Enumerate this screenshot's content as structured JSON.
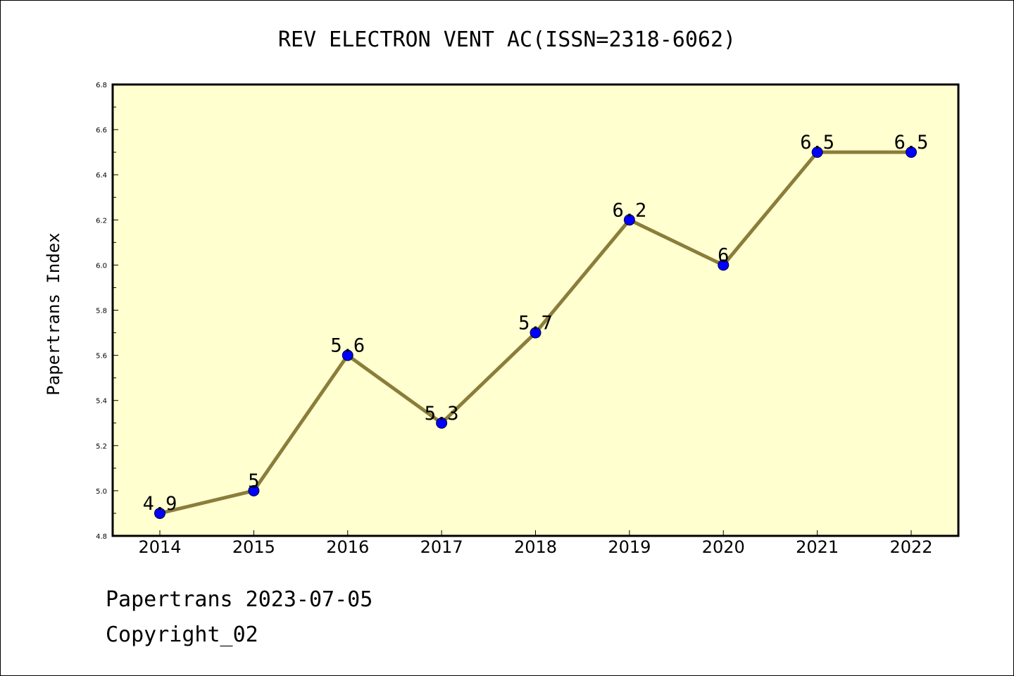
{
  "chart_data": {
    "type": "line",
    "title": "REV ELECTRON VENT AC(ISSN=2318-6062)",
    "ylabel": "Papertrans Index",
    "xlabel": "",
    "categories": [
      "2014",
      "2015",
      "2016",
      "2017",
      "2018",
      "2019",
      "2020",
      "2021",
      "2022"
    ],
    "series": [
      {
        "values": [
          4.9,
          5.0,
          5.6,
          5.3,
          5.7,
          6.2,
          6.0,
          6.5,
          6.5
        ],
        "labels": [
          "4.9",
          "5",
          "5.6",
          "5.3",
          "5.7",
          "6.2",
          "6",
          "6.5",
          "6.5"
        ]
      }
    ],
    "ylim": [
      4.8,
      6.8
    ],
    "yticks": [
      "4.8",
      "5.0",
      "5.2",
      "5.4",
      "5.6",
      "5.8",
      "6.0",
      "6.2",
      "6.4",
      "6.6",
      "6.8"
    ],
    "grid": false,
    "colors": {
      "line": "#8b7d3a",
      "marker": "#0000ff",
      "plot_background": "#ffffd0"
    }
  },
  "footer": {
    "line1": "Papertrans 2023-07-05",
    "line2": "Copyright_02"
  }
}
